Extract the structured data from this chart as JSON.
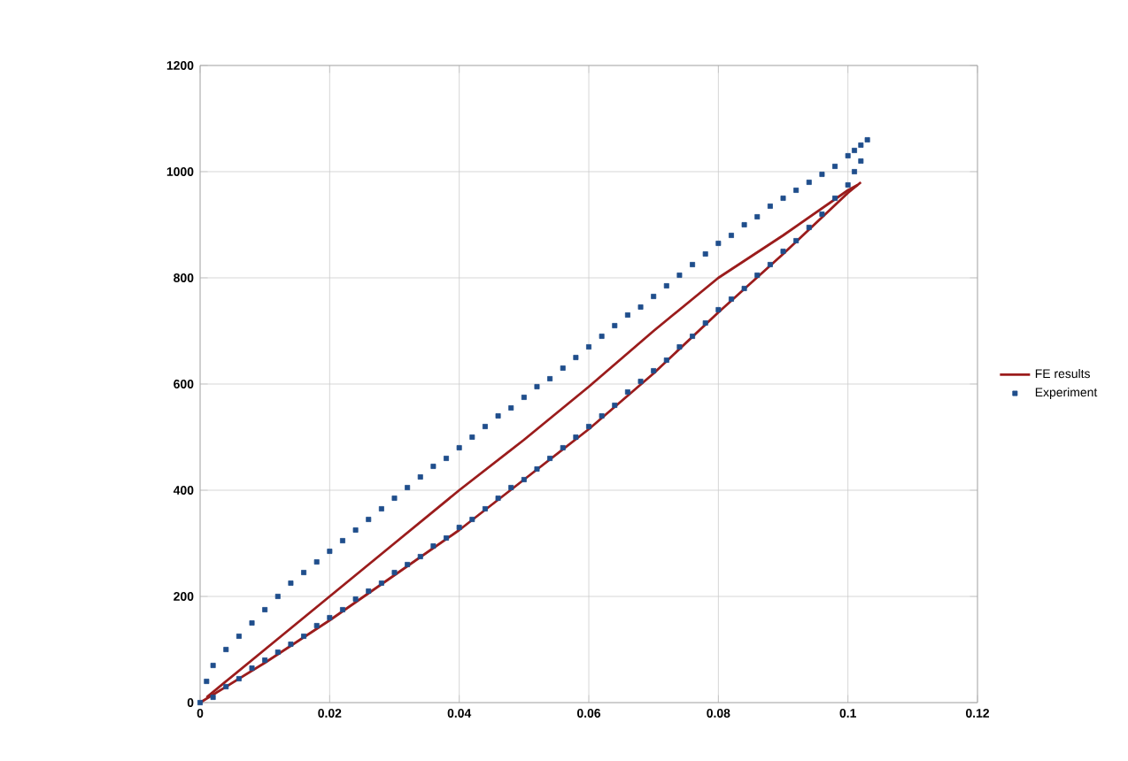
{
  "chart_data": {
    "type": "line",
    "xlim": [
      0,
      0.12
    ],
    "ylim": [
      0,
      1200
    ],
    "xticks": [
      0,
      0.02,
      0.04,
      0.06,
      0.08,
      0.1,
      0.12
    ],
    "yticks": [
      0,
      200,
      400,
      600,
      800,
      1000,
      1200
    ],
    "grid": true,
    "legend": "right",
    "series": [
      {
        "name": "FE results",
        "color": "#9b1c1c",
        "marker": "none",
        "line_style": "solid",
        "x": [
          0,
          0.01,
          0.02,
          0.03,
          0.04,
          0.05,
          0.06,
          0.07,
          0.08,
          0.09,
          0.1,
          0.102
        ],
        "values": [
          0,
          75,
          155,
          240,
          325,
          420,
          515,
          620,
          735,
          845,
          960,
          980
        ]
      },
      {
        "color": "#9b1c1c",
        "marker": "none",
        "line_style": "solid",
        "x": [
          0.001,
          0.01,
          0.02,
          0.03,
          0.04,
          0.05,
          0.06,
          0.07,
          0.08,
          0.09,
          0.1,
          0.1015
        ],
        "values": [
          10,
          100,
          200,
          300,
          400,
          495,
          595,
          700,
          800,
          880,
          965,
          975
        ]
      },
      {
        "name": "Experiment",
        "type": "scatter",
        "color": "#1f4e8c",
        "marker": "square",
        "x": [
          0,
          0.001,
          0.002,
          0.004,
          0.006,
          0.008,
          0.01,
          0.012,
          0.014,
          0.016,
          0.018,
          0.02,
          0.022,
          0.024,
          0.026,
          0.028,
          0.03,
          0.032,
          0.034,
          0.036,
          0.038,
          0.04,
          0.042,
          0.044,
          0.046,
          0.048,
          0.05,
          0.052,
          0.054,
          0.056,
          0.058,
          0.06,
          0.062,
          0.064,
          0.066,
          0.068,
          0.07,
          0.072,
          0.074,
          0.076,
          0.078,
          0.08,
          0.082,
          0.084,
          0.086,
          0.088,
          0.09,
          0.092,
          0.094,
          0.096,
          0.098,
          0.1,
          0.101,
          0.102,
          0.103,
          0.102,
          0.101,
          0.1,
          0.098,
          0.096,
          0.094,
          0.092,
          0.09,
          0.088,
          0.086,
          0.084,
          0.082,
          0.08,
          0.078,
          0.076,
          0.074,
          0.072,
          0.07,
          0.068,
          0.066,
          0.064,
          0.062,
          0.06,
          0.058,
          0.056,
          0.054,
          0.052,
          0.05,
          0.048,
          0.046,
          0.044,
          0.042,
          0.04,
          0.038,
          0.036,
          0.034,
          0.032,
          0.03,
          0.028,
          0.026,
          0.024,
          0.022,
          0.02,
          0.018,
          0.016,
          0.014,
          0.012,
          0.01,
          0.008,
          0.006,
          0.004,
          0.002
        ],
        "values": [
          0,
          40,
          70,
          100,
          125,
          150,
          175,
          200,
          225,
          245,
          265,
          285,
          305,
          325,
          345,
          365,
          385,
          405,
          425,
          445,
          460,
          480,
          500,
          520,
          540,
          555,
          575,
          595,
          610,
          630,
          650,
          670,
          690,
          710,
          730,
          745,
          765,
          785,
          805,
          825,
          845,
          865,
          880,
          900,
          915,
          935,
          950,
          965,
          980,
          995,
          1010,
          1030,
          1040,
          1050,
          1060,
          1020,
          1000,
          975,
          950,
          920,
          895,
          870,
          850,
          825,
          805,
          780,
          760,
          740,
          715,
          690,
          670,
          645,
          625,
          605,
          585,
          560,
          540,
          520,
          500,
          480,
          460,
          440,
          420,
          405,
          385,
          365,
          345,
          330,
          310,
          295,
          275,
          260,
          245,
          225,
          210,
          195,
          175,
          160,
          145,
          125,
          110,
          95,
          80,
          65,
          45,
          30,
          10
        ]
      }
    ]
  }
}
